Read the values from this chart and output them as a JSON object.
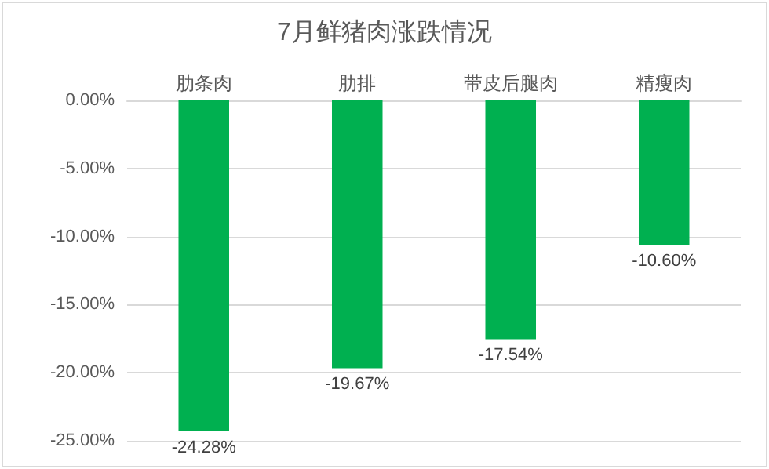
{
  "chart_data": {
    "type": "bar",
    "title": "7月鲜猪肉涨跌情况",
    "categories": [
      "肋条肉",
      "肋排",
      "带皮后腿肉",
      "精瘦肉"
    ],
    "values": [
      -24.28,
      -19.67,
      -17.54,
      -10.6
    ],
    "value_labels": [
      "-24.28%",
      "-19.67%",
      "-17.54%",
      "-10.60%"
    ],
    "color": "#00b050",
    "ylim": [
      -25,
      0
    ],
    "yticks": [
      {
        "value": 0,
        "label": "0.00%"
      },
      {
        "value": -5,
        "label": "-5.00%"
      },
      {
        "value": -10,
        "label": "-10.00%"
      },
      {
        "value": -15,
        "label": "-15.00%"
      },
      {
        "value": -20,
        "label": "-20.00%"
      },
      {
        "value": -25,
        "label": "-25.00%"
      }
    ],
    "grid": "y"
  }
}
